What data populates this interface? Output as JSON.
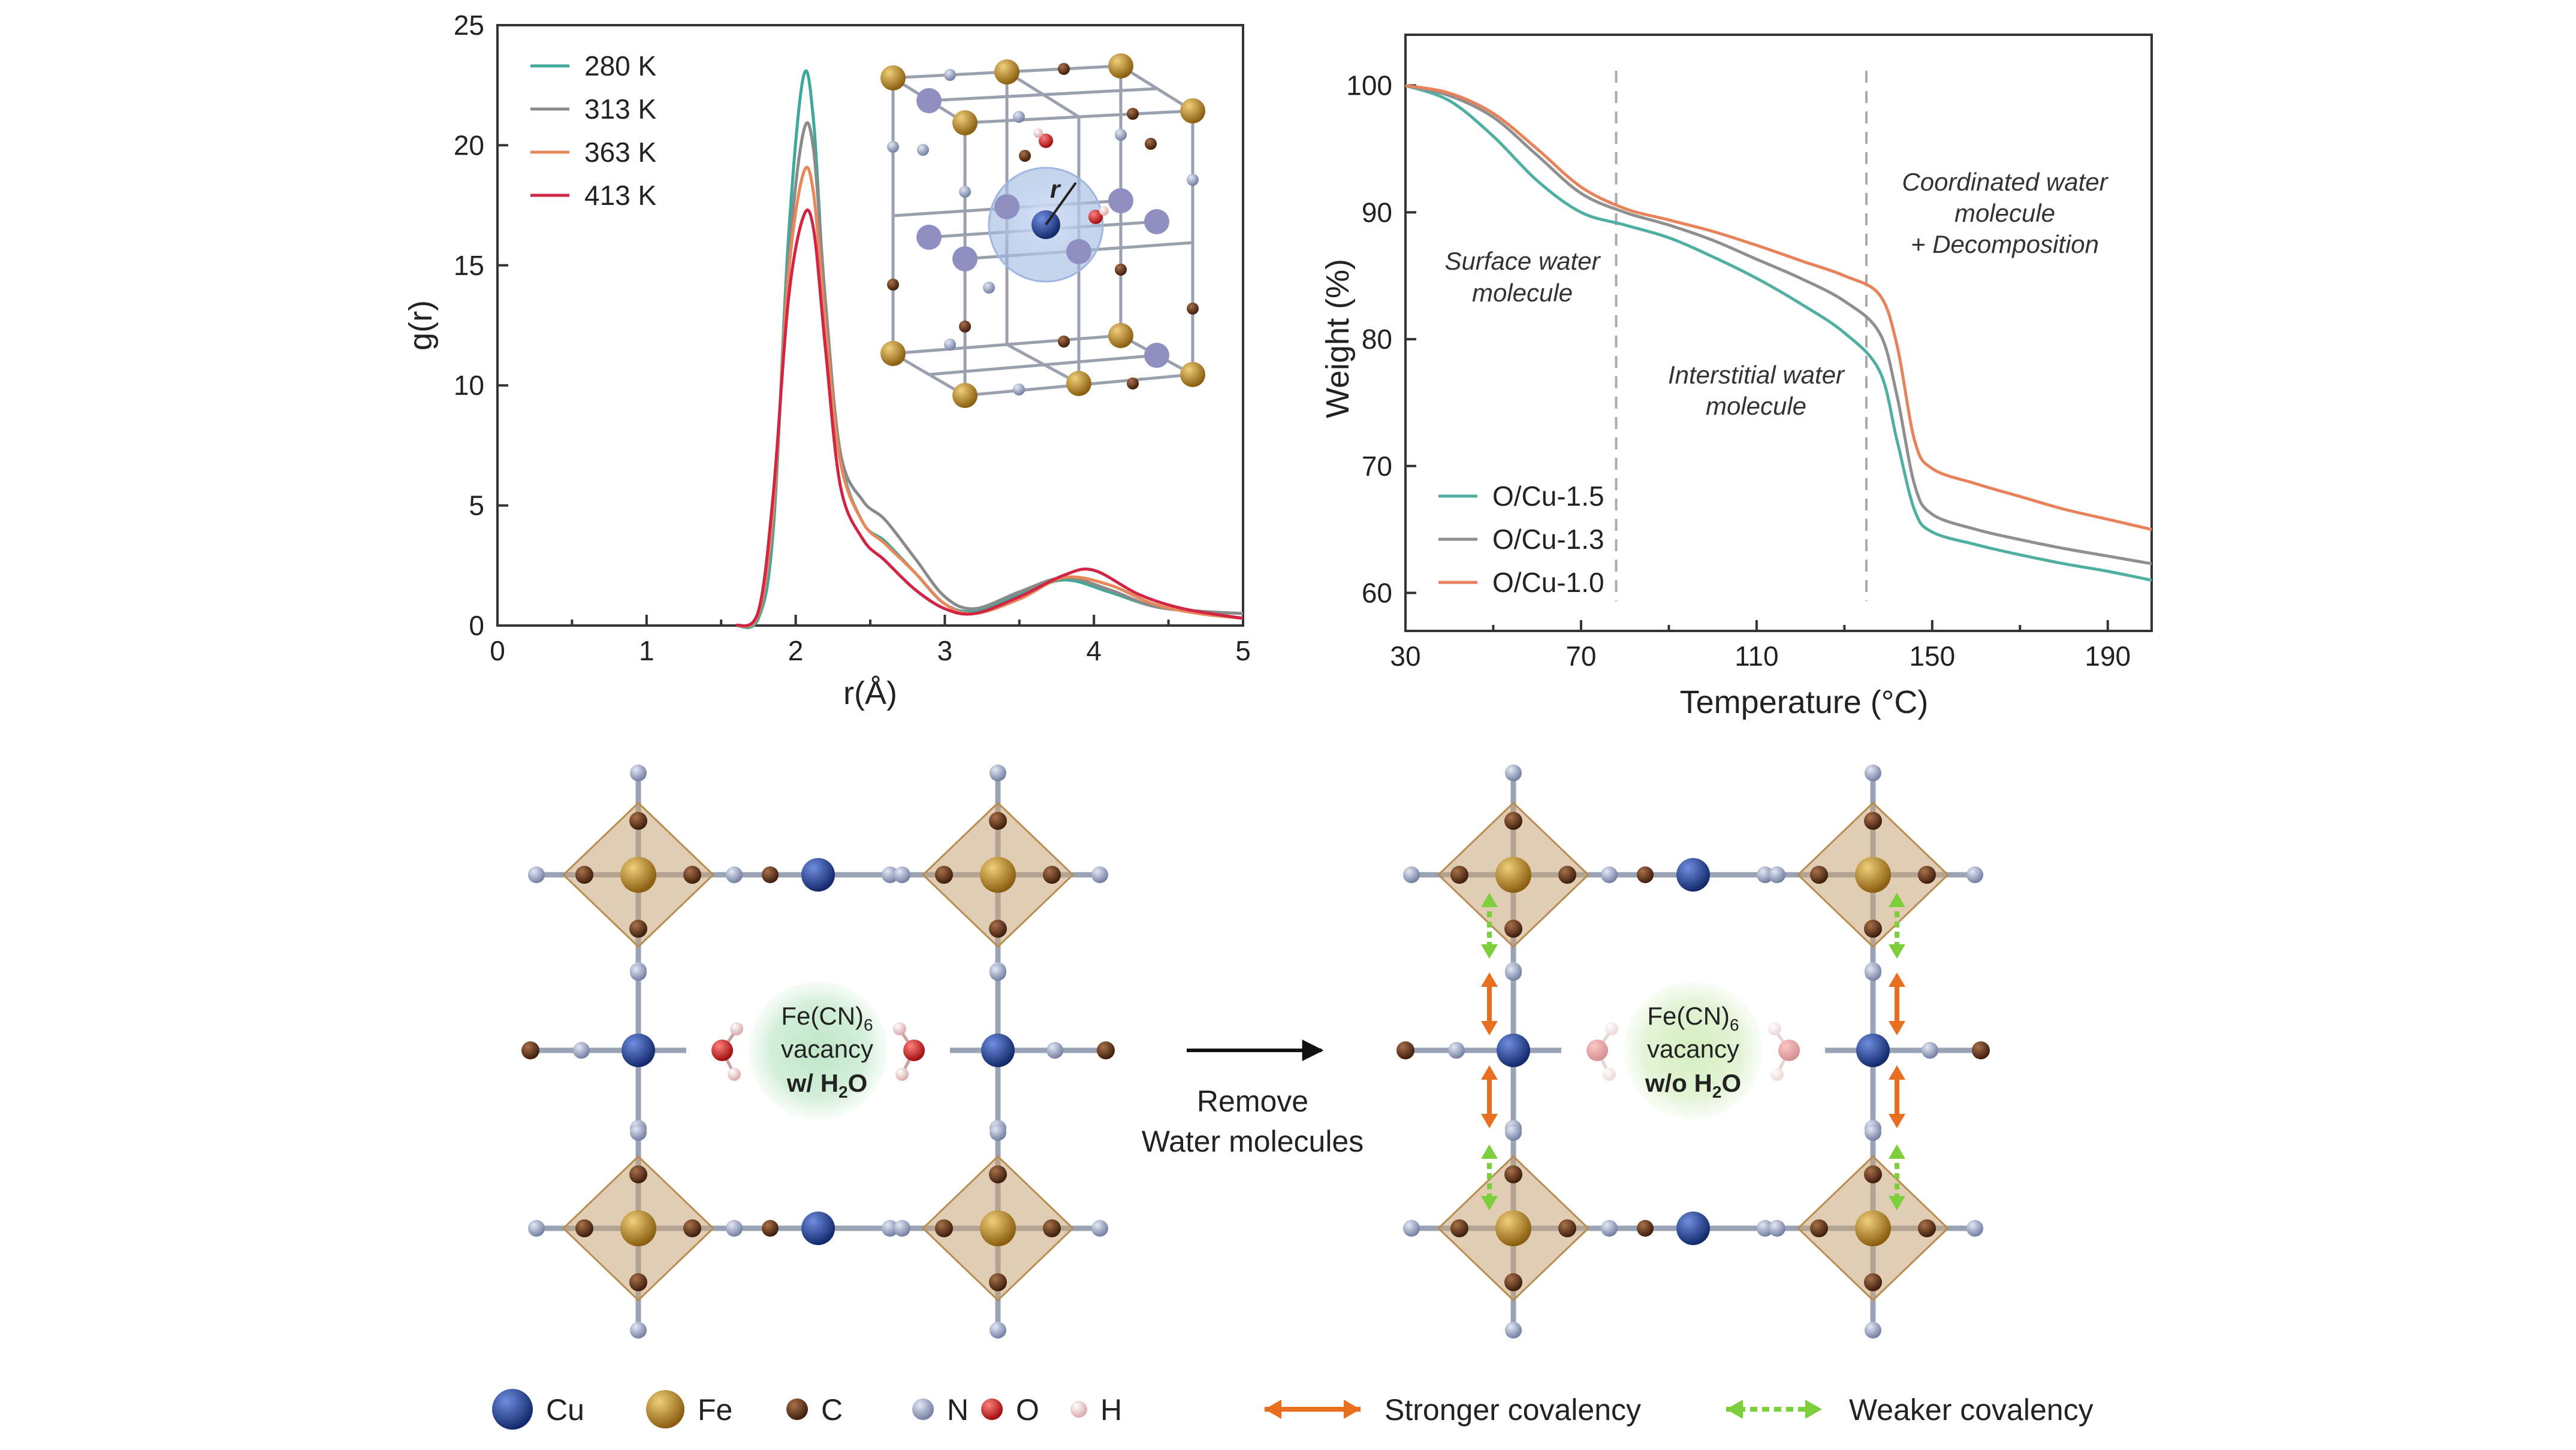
{
  "chart_data": [
    {
      "type": "line",
      "xlabel": "r(Å)",
      "ylabel": "g(r)",
      "xlim": [
        0,
        5
      ],
      "ylim": [
        0,
        25
      ],
      "xticks": [
        0,
        1,
        2,
        3,
        4,
        5
      ],
      "yticks": [
        0,
        5,
        10,
        15,
        20,
        25
      ],
      "legend_placement": "top-left",
      "series": [
        {
          "name": "280 K",
          "color": "#3fa89a",
          "x": [
            1.6,
            1.75,
            1.85,
            1.95,
            2.05,
            2.12,
            2.2,
            2.3,
            2.45,
            2.6,
            2.8,
            3.0,
            3.2,
            3.5,
            3.8,
            4.1,
            4.4,
            4.7,
            5.0
          ],
          "y": [
            0,
            0.3,
            4,
            16,
            22.8,
            21,
            13,
            7,
            4.3,
            3.5,
            2.2,
            0.9,
            0.6,
            1.3,
            1.9,
            1.4,
            0.8,
            0.6,
            0.5
          ]
        },
        {
          "name": "313 K",
          "color": "#8a8a8a",
          "x": [
            1.6,
            1.75,
            1.85,
            1.95,
            2.05,
            2.12,
            2.2,
            2.3,
            2.45,
            2.6,
            2.8,
            3.0,
            3.2,
            3.5,
            3.8,
            4.1,
            4.4,
            4.7,
            5.0
          ],
          "y": [
            0,
            0.4,
            4.5,
            15,
            20.5,
            19.8,
            13.5,
            7.2,
            5.2,
            4.4,
            2.8,
            1.2,
            0.7,
            1.4,
            2.0,
            1.5,
            0.8,
            0.6,
            0.5
          ]
        },
        {
          "name": "363 K",
          "color": "#e8885a",
          "x": [
            1.6,
            1.75,
            1.85,
            1.95,
            2.05,
            2.12,
            2.2,
            2.3,
            2.45,
            2.6,
            2.8,
            3.0,
            3.2,
            3.5,
            3.8,
            4.1,
            4.4,
            4.7,
            5.0
          ],
          "y": [
            0,
            0.5,
            5,
            14.5,
            18.8,
            18,
            12.5,
            6.8,
            4.3,
            3.4,
            2.2,
            0.9,
            0.5,
            1.1,
            2.0,
            1.7,
            0.9,
            0.5,
            0.3
          ]
        },
        {
          "name": "413 K",
          "color": "#d02545",
          "x": [
            1.6,
            1.75,
            1.85,
            1.95,
            2.05,
            2.12,
            2.2,
            2.3,
            2.45,
            2.6,
            2.8,
            3.0,
            3.2,
            3.5,
            3.8,
            4.0,
            4.3,
            4.6,
            5.0
          ],
          "y": [
            0,
            0.6,
            5.5,
            13.5,
            17,
            16.5,
            11.5,
            5.8,
            3.6,
            2.7,
            1.5,
            0.7,
            0.5,
            1.2,
            2.1,
            2.3,
            1.3,
            0.7,
            0.3
          ]
        }
      ]
    },
    {
      "type": "line",
      "xlabel": "Temperature (°C)",
      "ylabel": "Weight (%)",
      "xlim": [
        30,
        200
      ],
      "ylim": [
        57,
        104
      ],
      "xticks": [
        30,
        70,
        110,
        150,
        190
      ],
      "yticks": [
        60,
        70,
        80,
        90,
        100
      ],
      "legend_placement": "bottom-left",
      "series": [
        {
          "name": "O/Cu-1.5",
          "color": "#4fb0a2",
          "x": [
            30,
            40,
            50,
            60,
            70,
            80,
            90,
            100,
            110,
            120,
            130,
            138,
            142,
            146,
            150,
            160,
            170,
            180,
            190,
            200
          ],
          "y": [
            100,
            98.8,
            96,
            92.5,
            90,
            89,
            88,
            86.5,
            84.8,
            82.8,
            80.5,
            77.5,
            72,
            66.5,
            64.8,
            63.8,
            63,
            62.3,
            61.7,
            61
          ]
        },
        {
          "name": "O/Cu-1.3",
          "color": "#8f8f8f",
          "x": [
            30,
            40,
            50,
            60,
            70,
            80,
            90,
            100,
            110,
            120,
            130,
            138,
            142,
            146,
            150,
            160,
            170,
            180,
            190,
            200
          ],
          "y": [
            100,
            99.2,
            97.5,
            94.5,
            91.5,
            90,
            89,
            87.8,
            86.3,
            84.8,
            83,
            80.5,
            75.5,
            68.5,
            66.2,
            65,
            64.2,
            63.5,
            62.9,
            62.3
          ]
        },
        {
          "name": "O/Cu-1.0",
          "color": "#e8825a",
          "x": [
            30,
            40,
            50,
            60,
            70,
            80,
            90,
            100,
            110,
            120,
            130,
            138,
            142,
            146,
            150,
            160,
            170,
            180,
            190,
            200
          ],
          "y": [
            100,
            99.4,
            97.8,
            95,
            92,
            90.3,
            89.4,
            88.5,
            87.4,
            86.2,
            85,
            83.5,
            79.5,
            72,
            69.8,
            68.6,
            67.6,
            66.6,
            65.8,
            65
          ]
        }
      ],
      "annotations": [
        {
          "lines": [
            "Surface water",
            "molecule"
          ]
        },
        {
          "lines": [
            "Interstitial water",
            "molecule"
          ]
        },
        {
          "lines": [
            "Coordinated water",
            "molecule",
            "+ Decomposition"
          ]
        }
      ],
      "dashed_lines_x": [
        78,
        135
      ]
    }
  ],
  "diagram": {
    "left_vacancy": {
      "line1": "Fe(CN)",
      "sub1": "6",
      "line2": "vacancy",
      "line3": "w/ H",
      "sub3": "2",
      "line3b": "O"
    },
    "right_vacancy": {
      "line1": "Fe(CN)",
      "sub1": "6",
      "line2": "vacancy",
      "line3": "w/o H",
      "sub3": "2",
      "line3b": "O"
    },
    "arrow_label": [
      "Remove",
      "Water molecules"
    ],
    "inset_label": "r"
  },
  "legend": {
    "atoms": [
      {
        "label": "Cu",
        "color": "#1d3f8f"
      },
      {
        "label": "Fe",
        "color": "#b8862a"
      },
      {
        "label": "C",
        "color": "#6b3a1f"
      },
      {
        "label": "N",
        "color": "#9aa6c4"
      },
      {
        "label": "O",
        "color": "#d21e1e"
      },
      {
        "label": "H",
        "color": "#f3d3d3"
      }
    ],
    "stronger": "Stronger covalency",
    "weaker": "Weaker covalency"
  }
}
